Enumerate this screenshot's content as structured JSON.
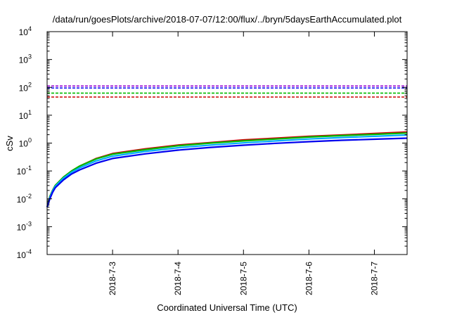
{
  "chart_data": {
    "type": "line",
    "title": "/data/run/goesPlots/archive/2018-07-07/12:00/flux/../bryn/5daysEarthAccumulated.plot",
    "xlabel": "Coordinated Universal Time (UTC)",
    "ylabel": "cSv",
    "y_scale": "log",
    "ylim": [
      0.0001,
      10000
    ],
    "xlim": [
      "2018-07-02 00:00",
      "2018-07-07 12:00"
    ],
    "y_ticks": [
      {
        "base": "10",
        "exp": "-4"
      },
      {
        "base": "10",
        "exp": "-3"
      },
      {
        "base": "10",
        "exp": "-2"
      },
      {
        "base": "10",
        "exp": "-1"
      },
      {
        "base": "10",
        "exp": "0"
      },
      {
        "base": "10",
        "exp": "1"
      },
      {
        "base": "10",
        "exp": "2"
      },
      {
        "base": "10",
        "exp": "3"
      },
      {
        "base": "10",
        "exp": "4"
      }
    ],
    "x_ticks": [
      {
        "label": "2018-7-3",
        "value": "2018-07-03 00:00"
      },
      {
        "label": "2018-7-4",
        "value": "2018-07-04 00:00"
      },
      {
        "label": "2018-7-5",
        "value": "2018-07-05 00:00"
      },
      {
        "label": "2018-7-6",
        "value": "2018-07-06 00:00"
      },
      {
        "label": "2018-7-7",
        "value": "2018-07-07 00:00"
      }
    ],
    "x": [
      "2018-07-02 00:00",
      "2018-07-02 01:00",
      "2018-07-02 02:00",
      "2018-07-02 03:00",
      "2018-07-02 06:00",
      "2018-07-02 09:00",
      "2018-07-02 12:00",
      "2018-07-02 18:00",
      "2018-07-03 00:00",
      "2018-07-03 12:00",
      "2018-07-04 00:00",
      "2018-07-04 12:00",
      "2018-07-05 00:00",
      "2018-07-05 12:00",
      "2018-07-06 00:00",
      "2018-07-06 12:00",
      "2018-07-07 00:00",
      "2018-07-07 12:00"
    ],
    "series": [
      {
        "color": "#cc0000",
        "values": [
          0.005,
          0.012,
          0.02,
          0.03,
          0.06,
          0.1,
          0.15,
          0.28,
          0.42,
          0.62,
          0.85,
          1.05,
          1.3,
          1.5,
          1.75,
          1.95,
          2.2,
          2.5
        ]
      },
      {
        "color": "#00bb00",
        "values": [
          0.005,
          0.012,
          0.02,
          0.03,
          0.06,
          0.1,
          0.15,
          0.27,
          0.4,
          0.58,
          0.8,
          1.0,
          1.2,
          1.4,
          1.65,
          1.85,
          2.05,
          2.3
        ]
      },
      {
        "color": "#00aaff",
        "values": [
          0.005,
          0.011,
          0.019,
          0.028,
          0.055,
          0.09,
          0.13,
          0.23,
          0.34,
          0.5,
          0.68,
          0.85,
          1.02,
          1.2,
          1.4,
          1.58,
          1.75,
          1.95
        ]
      },
      {
        "color": "#0000ee",
        "values": [
          0.005,
          0.01,
          0.017,
          0.025,
          0.048,
          0.078,
          0.11,
          0.19,
          0.28,
          0.41,
          0.56,
          0.7,
          0.84,
          0.98,
          1.12,
          1.26,
          1.38,
          1.5
        ]
      }
    ],
    "thresholds": [
      {
        "color": "#9400d3",
        "value": 112
      },
      {
        "color": "#0000ee",
        "value": 95
      },
      {
        "color": "#00bb00",
        "value": 62
      },
      {
        "color": "#cc0000",
        "value": 45
      }
    ],
    "grid": false,
    "legend": "none"
  }
}
